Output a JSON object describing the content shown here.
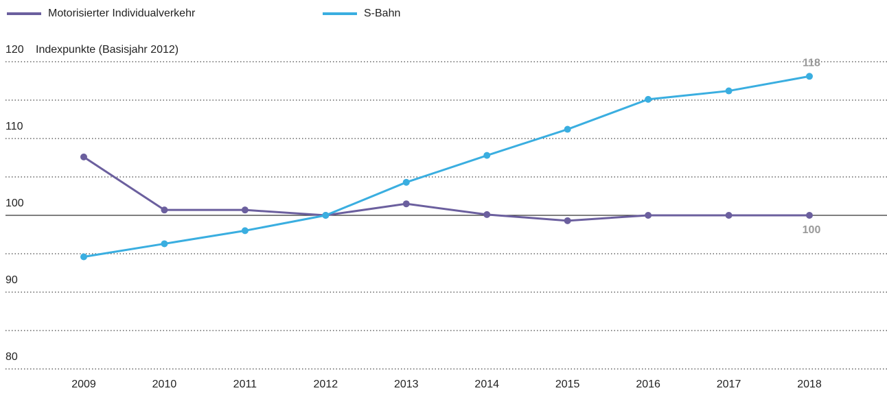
{
  "chart_data": {
    "type": "line",
    "y_label": "Indexpunkte (Basisjahr 2012)",
    "categories": [
      "2009",
      "2010",
      "2011",
      "2012",
      "2013",
      "2014",
      "2015",
      "2016",
      "2017",
      "2018"
    ],
    "series": [
      {
        "name": "Motorisierter Individualverkehr",
        "color": "#6b5f9e",
        "values": [
          107.6,
          100.7,
          100.7,
          100,
          101.5,
          100.1,
          99.3,
          100,
          100,
          100
        ],
        "value_labels": [
          null,
          null,
          null,
          null,
          null,
          null,
          null,
          null,
          null,
          "100"
        ]
      },
      {
        "name": "S-Bahn",
        "color": "#3aaee0",
        "values": [
          94.6,
          96.3,
          98.0,
          100,
          104.3,
          107.8,
          111.2,
          115.1,
          116.2,
          118.1
        ],
        "value_labels": [
          null,
          null,
          null,
          null,
          null,
          null,
          null,
          null,
          null,
          "118"
        ]
      }
    ],
    "ylim": [
      80,
      120
    ],
    "yticks": [
      80,
      90,
      100,
      110,
      120
    ],
    "minor_yticks": [
      85,
      95,
      105,
      115
    ],
    "baseline": 100,
    "grid": true,
    "legend": "top"
  }
}
